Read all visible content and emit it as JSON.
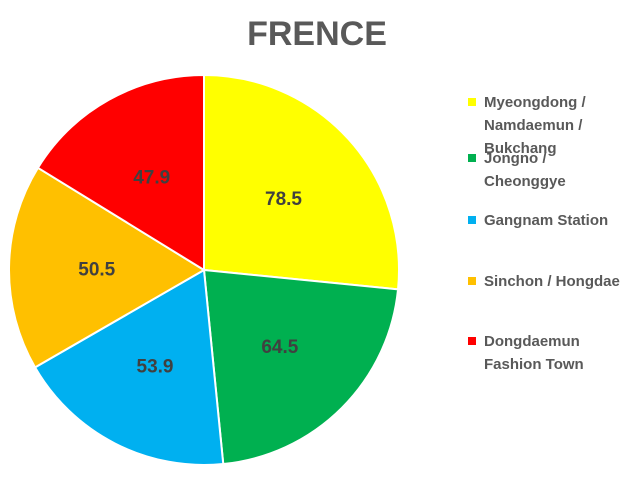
{
  "chart_data": {
    "type": "pie",
    "title": "FRENCE",
    "categories": [
      "Myeongdong / Namdaemun / Bukchang",
      "Jongno / Cheonggye",
      "Gangnam Station",
      "Sinchon / Hongdae",
      "Dongdaemun Fashion Town"
    ],
    "values": [
      78.5,
      64.5,
      53.9,
      50.5,
      47.9
    ],
    "data_labels": [
      "78.5",
      "64.5",
      "53.9",
      "50.5",
      "47.9"
    ],
    "colors": [
      "#FFFF00",
      "#00B050",
      "#00B0F0",
      "#FFC000",
      "#FF0000"
    ],
    "legend_position": "right",
    "start_angle": "12 o'clock, clockwise"
  }
}
